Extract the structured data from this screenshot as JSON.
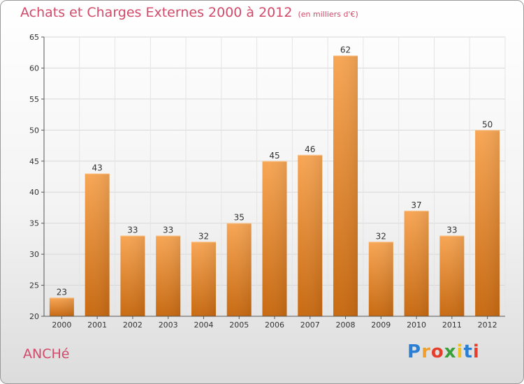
{
  "title": "Achats et Charges Externes 2000 à 2012",
  "subtitle": "(en milliers d'€)",
  "commune": "ANCHé",
  "logo": {
    "letters": [
      {
        "ch": "P",
        "color": "#2a7fd4"
      },
      {
        "ch": "r",
        "color": "#f0a02a"
      },
      {
        "ch": "o",
        "color": "#e63e2a"
      },
      {
        "ch": "x",
        "color": "#3aa03a"
      },
      {
        "ch": "i",
        "color": "#f0c020"
      },
      {
        "ch": "t",
        "color": "#2a7fd4"
      },
      {
        "ch": "i",
        "color": "#e63e2a"
      }
    ]
  },
  "chart_data": {
    "type": "bar",
    "title": "Achats et Charges Externes 2000 à 2012",
    "subtitle": "(en milliers d'€)",
    "categories": [
      "2000",
      "2001",
      "2002",
      "2003",
      "2004",
      "2005",
      "2006",
      "2007",
      "2008",
      "2009",
      "2010",
      "2011",
      "2012"
    ],
    "values": [
      23,
      43,
      33,
      33,
      32,
      35,
      45,
      46,
      62,
      32,
      37,
      33,
      50
    ],
    "ylim": [
      20,
      65
    ],
    "yticks": [
      20,
      25,
      30,
      35,
      40,
      45,
      50,
      55,
      60,
      65
    ],
    "grid": true,
    "bar_color": "#f0922e"
  }
}
